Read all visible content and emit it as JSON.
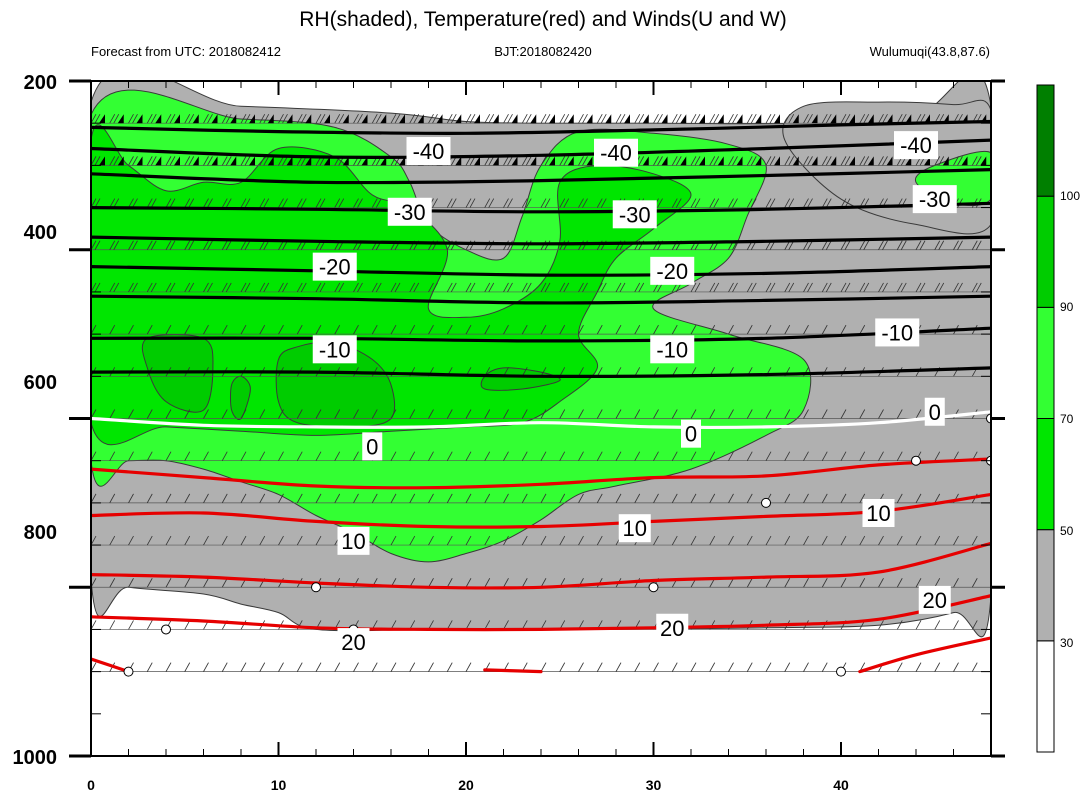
{
  "chart_data": {
    "type": "heatmap",
    "title": "RH(shaded), Temperature(red) and Winds(U and W)",
    "subtitle_left": "Forecast from UTC: 2018082412",
    "subtitle_center": "BJT:2018082420",
    "subtitle_right": "Wulumuqi(43.8,87.6)",
    "xlabel": "",
    "ylabel": "",
    "xlim": [
      0,
      48
    ],
    "ylim": [
      1000,
      200
    ],
    "x_ticks": [
      "0",
      "10",
      "20",
      "30",
      "40"
    ],
    "y_ticks": [
      "200",
      "400",
      "600",
      "800",
      "1000"
    ],
    "colorbar": {
      "levels": [
        "30",
        "50",
        "70",
        "90",
        "100"
      ],
      "colors": [
        "#ffffff",
        "#b0b0b0",
        "#00e600",
        "#33ff33",
        "#00cc00",
        "#007f00"
      ]
    },
    "rh_regions": [
      {
        "level": 1,
        "color": "#b0b0b0",
        "points": [
          [
            0,
            225
          ],
          [
            8,
            230
          ],
          [
            16,
            238
          ],
          [
            20,
            248
          ],
          [
            24,
            250
          ],
          [
            30,
            250
          ],
          [
            38,
            250
          ],
          [
            44,
            240
          ],
          [
            48,
            230
          ],
          [
            48,
            810
          ],
          [
            46,
            830
          ],
          [
            42,
            845
          ],
          [
            36,
            848
          ],
          [
            28,
            850
          ],
          [
            22,
            850
          ],
          [
            18,
            850
          ],
          [
            12,
            850
          ],
          [
            10,
            830
          ],
          [
            8,
            820
          ],
          [
            6,
            808
          ],
          [
            2,
            800
          ],
          [
            0,
            790
          ]
        ]
      },
      {
        "level": 1,
        "color": "#b0b0b0",
        "points": [
          [
            37,
            270
          ],
          [
            38,
            230
          ],
          [
            42,
            225
          ],
          [
            46,
            228
          ],
          [
            48,
            235
          ],
          [
            48,
            370
          ],
          [
            44,
            370
          ],
          [
            40,
            340
          ]
        ]
      },
      {
        "level": 3,
        "color": "#33ff33",
        "points": [
          [
            0,
            240
          ],
          [
            8,
            245
          ],
          [
            13,
            255
          ],
          [
            16,
            290
          ],
          [
            17,
            320
          ],
          [
            18,
            370
          ],
          [
            20,
            400
          ],
          [
            22,
            410
          ],
          [
            23,
            360
          ],
          [
            24,
            300
          ],
          [
            26,
            260
          ],
          [
            30,
            262
          ],
          [
            34,
            275
          ],
          [
            36,
            300
          ],
          [
            35,
            360
          ],
          [
            34,
            410
          ],
          [
            32,
            440
          ],
          [
            30,
            470
          ],
          [
            34,
            500
          ],
          [
            38,
            530
          ],
          [
            38,
            590
          ],
          [
            36,
            620
          ],
          [
            32,
            660
          ],
          [
            28,
            680
          ],
          [
            26,
            690
          ],
          [
            24,
            720
          ],
          [
            22,
            745
          ],
          [
            20,
            760
          ],
          [
            18,
            770
          ],
          [
            16,
            760
          ],
          [
            14,
            735
          ],
          [
            12,
            715
          ],
          [
            10,
            690
          ],
          [
            8,
            675
          ],
          [
            6,
            660
          ],
          [
            4,
            650
          ],
          [
            2,
            650
          ],
          [
            0,
            650
          ]
        ]
      },
      {
        "level": 3,
        "color": "#33ff33",
        "points": [
          [
            44,
            320
          ],
          [
            45,
            300
          ],
          [
            48,
            285
          ],
          [
            48,
            340
          ],
          [
            46,
            345
          ]
        ]
      },
      {
        "level": 2,
        "color": "#00e600",
        "points": [
          [
            0,
            270
          ],
          [
            2,
            300
          ],
          [
            4,
            330
          ],
          [
            6,
            320
          ],
          [
            8,
            320
          ],
          [
            10,
            280
          ],
          [
            13,
            290
          ],
          [
            15,
            335
          ],
          [
            17,
            350
          ],
          [
            19,
            400
          ],
          [
            18,
            470
          ],
          [
            20,
            480
          ],
          [
            22,
            470
          ],
          [
            24,
            440
          ],
          [
            25,
            390
          ],
          [
            25,
            320
          ],
          [
            27,
            300
          ],
          [
            30,
            310
          ],
          [
            32,
            335
          ],
          [
            30,
            375
          ],
          [
            28,
            410
          ],
          [
            27,
            450
          ],
          [
            26,
            500
          ],
          [
            27,
            540
          ],
          [
            25,
            580
          ],
          [
            23,
            605
          ],
          [
            20,
            610
          ],
          [
            16,
            615
          ],
          [
            12,
            620
          ],
          [
            8,
            615
          ],
          [
            4,
            610
          ],
          [
            0,
            605
          ]
        ]
      },
      {
        "level": 4,
        "color": "#00cc00",
        "points": [
          [
            3,
            505
          ],
          [
            6,
            505
          ],
          [
            6.5,
            540
          ],
          [
            6,
            590
          ],
          [
            4,
            580
          ],
          [
            3,
            540
          ]
        ]
      },
      {
        "level": 4,
        "color": "#00cc00",
        "points": [
          [
            10,
            530
          ],
          [
            11,
            515
          ],
          [
            13,
            510
          ],
          [
            15,
            530
          ],
          [
            16,
            560
          ],
          [
            16,
            600
          ],
          [
            14,
            610
          ],
          [
            11,
            605
          ],
          [
            10,
            580
          ]
        ]
      },
      {
        "level": 4,
        "color": "#00cc00",
        "points": [
          [
            21,
            550
          ],
          [
            22,
            540
          ],
          [
            24,
            545
          ],
          [
            25,
            555
          ],
          [
            23,
            565
          ],
          [
            21,
            565
          ]
        ]
      },
      {
        "level": 4,
        "color": "#00cc00",
        "points": [
          [
            7.5,
            560
          ],
          [
            8,
            550
          ],
          [
            8.5,
            565
          ],
          [
            8,
            600
          ],
          [
            7.5,
            590
          ]
        ]
      }
    ],
    "temperature_contours": [
      {
        "label": "-40",
        "color": "#000000",
        "points": [
          [
            0,
            255
          ],
          [
            10,
            260
          ],
          [
            20,
            262
          ],
          [
            30,
            258
          ],
          [
            40,
            252
          ],
          [
            48,
            248
          ]
        ]
      },
      {
        "label": "-40",
        "color": "#000000",
        "points": [
          [
            0,
            280
          ],
          [
            12,
            290
          ],
          [
            24,
            288
          ],
          [
            36,
            280
          ],
          [
            48,
            270
          ]
        ]
      },
      {
        "label": "-30",
        "color": "#000000",
        "points": [
          [
            0,
            310
          ],
          [
            12,
            320
          ],
          [
            24,
            318
          ],
          [
            36,
            312
          ],
          [
            48,
            305
          ]
        ]
      },
      {
        "label": "-30",
        "color": "#000000",
        "points": [
          [
            0,
            350
          ],
          [
            12,
            352
          ],
          [
            24,
            355
          ],
          [
            36,
            352
          ],
          [
            48,
            345
          ]
        ]
      },
      {
        "label": "-20",
        "color": "#000000",
        "points": [
          [
            0,
            385
          ],
          [
            12,
            390
          ],
          [
            24,
            393
          ],
          [
            36,
            390
          ],
          [
            48,
            385
          ]
        ]
      },
      {
        "label": "-20",
        "color": "#000000",
        "points": [
          [
            0,
            420
          ],
          [
            12,
            425
          ],
          [
            24,
            430
          ],
          [
            36,
            428
          ],
          [
            48,
            420
          ]
        ]
      },
      {
        "label": "-20",
        "color": "#000000",
        "points": [
          [
            0,
            455
          ],
          [
            12,
            458
          ],
          [
            24,
            463
          ],
          [
            36,
            460
          ],
          [
            48,
            455
          ]
        ]
      },
      {
        "label": "-10",
        "color": "#000000",
        "points": [
          [
            0,
            505
          ],
          [
            12,
            505
          ],
          [
            24,
            508
          ],
          [
            36,
            505
          ],
          [
            48,
            493
          ]
        ]
      },
      {
        "label": "-10",
        "color": "#000000",
        "points": [
          [
            0,
            545
          ],
          [
            12,
            545
          ],
          [
            24,
            550
          ],
          [
            36,
            548
          ],
          [
            48,
            540
          ]
        ]
      },
      {
        "label": "0",
        "color": "#ffffff",
        "points": [
          [
            0,
            600
          ],
          [
            6,
            608
          ],
          [
            12,
            610
          ],
          [
            18,
            610
          ],
          [
            24,
            605
          ],
          [
            30,
            610
          ],
          [
            36,
            610
          ],
          [
            42,
            605
          ],
          [
            48,
            592
          ]
        ]
      },
      {
        "label": "10",
        "color": "#e60000",
        "points": [
          [
            0,
            660
          ],
          [
            6,
            670
          ],
          [
            12,
            680
          ],
          [
            18,
            682
          ],
          [
            24,
            678
          ],
          [
            30,
            670
          ],
          [
            36,
            668
          ],
          [
            42,
            655
          ],
          [
            48,
            648
          ]
        ]
      },
      {
        "label": "10",
        "color": "#e60000",
        "points": [
          [
            0,
            715
          ],
          [
            6,
            712
          ],
          [
            12,
            722
          ],
          [
            18,
            728
          ],
          [
            24,
            728
          ],
          [
            30,
            722
          ],
          [
            36,
            716
          ],
          [
            42,
            710
          ],
          [
            48,
            690
          ]
        ]
      },
      {
        "label": "20",
        "color": "#e60000",
        "points": [
          [
            0,
            785
          ],
          [
            6,
            788
          ],
          [
            12,
            795
          ],
          [
            18,
            800
          ],
          [
            24,
            800
          ],
          [
            30,
            792
          ],
          [
            36,
            788
          ],
          [
            42,
            782
          ],
          [
            48,
            748
          ]
        ]
      },
      {
        "label": "20",
        "color": "#e60000",
        "points": [
          [
            0,
            835
          ],
          [
            6,
            840
          ],
          [
            12,
            848
          ],
          [
            18,
            850
          ],
          [
            24,
            850
          ],
          [
            30,
            848
          ],
          [
            36,
            845
          ],
          [
            42,
            838
          ],
          [
            48,
            810
          ]
        ]
      },
      {
        "label": "20",
        "color": "#e60000",
        "points": [
          [
            0,
            885
          ],
          [
            2,
            900
          ]
        ]
      },
      {
        "label": "20",
        "color": "#e60000",
        "points": [
          [
            21,
            898
          ],
          [
            24,
            900
          ]
        ]
      },
      {
        "label": "20",
        "color": "#e60000",
        "points": [
          [
            41,
            900
          ],
          [
            44,
            880
          ],
          [
            48,
            860
          ]
        ]
      }
    ],
    "contour_labels": [
      {
        "text": "-40",
        "x": 18,
        "y": 283
      },
      {
        "text": "-40",
        "x": 28,
        "y": 285
      },
      {
        "text": "-40",
        "x": 44,
        "y": 276
      },
      {
        "text": "-30",
        "x": 17,
        "y": 355
      },
      {
        "text": "-30",
        "x": 29,
        "y": 358
      },
      {
        "text": "-30",
        "x": 45,
        "y": 340
      },
      {
        "text": "-20",
        "x": 13,
        "y": 420
      },
      {
        "text": "-20",
        "x": 31,
        "y": 425
      },
      {
        "text": "-10",
        "x": 13,
        "y": 518
      },
      {
        "text": "-10",
        "x": 31,
        "y": 518
      },
      {
        "text": "-10",
        "x": 43,
        "y": 498
      },
      {
        "text": "0",
        "x": 15,
        "y": 633
      },
      {
        "text": "0",
        "x": 32,
        "y": 618
      },
      {
        "text": "0",
        "x": 45,
        "y": 592
      },
      {
        "text": "10",
        "x": 14,
        "y": 745
      },
      {
        "text": "10",
        "x": 29,
        "y": 730
      },
      {
        "text": "10",
        "x": 42,
        "y": 712
      },
      {
        "text": "20",
        "x": 14,
        "y": 865
      },
      {
        "text": "20",
        "x": 31,
        "y": 848
      },
      {
        "text": "20",
        "x": 45,
        "y": 815
      }
    ],
    "calm_points": [
      [
        2,
        900
      ],
      [
        4,
        850
      ],
      [
        12,
        800
      ],
      [
        14,
        850
      ],
      [
        30,
        800
      ],
      [
        36,
        700
      ],
      [
        40,
        900
      ],
      [
        44,
        650
      ],
      [
        48,
        650
      ],
      [
        48,
        600
      ]
    ]
  }
}
